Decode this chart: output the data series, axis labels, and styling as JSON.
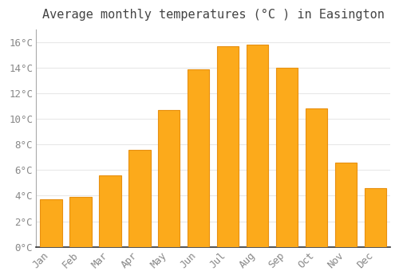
{
  "title": "Average monthly temperatures (°C ) in Easington",
  "months": [
    "Jan",
    "Feb",
    "Mar",
    "Apr",
    "May",
    "Jun",
    "Jul",
    "Aug",
    "Sep",
    "Oct",
    "Nov",
    "Dec"
  ],
  "temperatures": [
    3.7,
    3.9,
    5.6,
    7.6,
    10.7,
    13.9,
    15.7,
    15.8,
    14.0,
    10.8,
    6.6,
    4.6
  ],
  "bar_color": "#FCAA1B",
  "bar_edge_color": "#E89010",
  "background_color": "#FFFFFF",
  "plot_bg_color": "#FFFFFF",
  "grid_color": "#E8E8E8",
  "tick_label_color": "#888888",
  "title_color": "#444444",
  "spine_color": "#AAAAAA",
  "ylim": [
    0,
    17.0
  ],
  "yticks": [
    0,
    2,
    4,
    6,
    8,
    10,
    12,
    14,
    16
  ],
  "ytick_labels": [
    "0°C",
    "2°C",
    "4°C",
    "6°C",
    "8°C",
    "10°C",
    "12°C",
    "14°C",
    "16°C"
  ],
  "title_fontsize": 11,
  "tick_fontsize": 9,
  "figsize": [
    5.0,
    3.5
  ],
  "dpi": 100
}
